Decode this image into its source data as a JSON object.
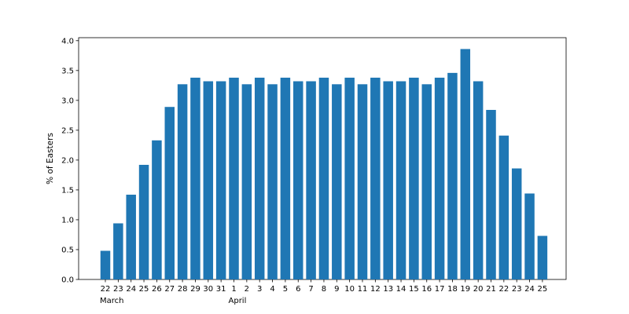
{
  "chart_data": {
    "type": "bar",
    "ylabel": "% of Easters",
    "ylim": [
      0,
      4.05
    ],
    "yticks": [
      "0.0",
      "0.5",
      "1.0",
      "1.5",
      "2.0",
      "2.5",
      "3.0",
      "3.5",
      "4.0"
    ],
    "categories": [
      "22",
      "23",
      "24",
      "25",
      "26",
      "27",
      "28",
      "29",
      "30",
      "31",
      "1",
      "2",
      "3",
      "4",
      "5",
      "6",
      "7",
      "8",
      "9",
      "10",
      "11",
      "12",
      "13",
      "14",
      "15",
      "16",
      "17",
      "18",
      "19",
      "20",
      "21",
      "22",
      "23",
      "24",
      "25"
    ],
    "values": [
      0.48,
      0.94,
      1.42,
      1.92,
      2.33,
      2.89,
      3.27,
      3.38,
      3.32,
      3.32,
      3.38,
      3.27,
      3.38,
      3.27,
      3.38,
      3.32,
      3.32,
      3.38,
      3.27,
      3.38,
      3.27,
      3.38,
      3.32,
      3.32,
      3.38,
      3.27,
      3.38,
      3.46,
      3.86,
      3.32,
      2.84,
      2.41,
      1.86,
      1.44,
      0.73
    ],
    "month_labels": [
      {
        "index": 0,
        "label": "March"
      },
      {
        "index": 10,
        "label": "April"
      }
    ],
    "bar_color": "#1f77b4",
    "grid": false
  }
}
